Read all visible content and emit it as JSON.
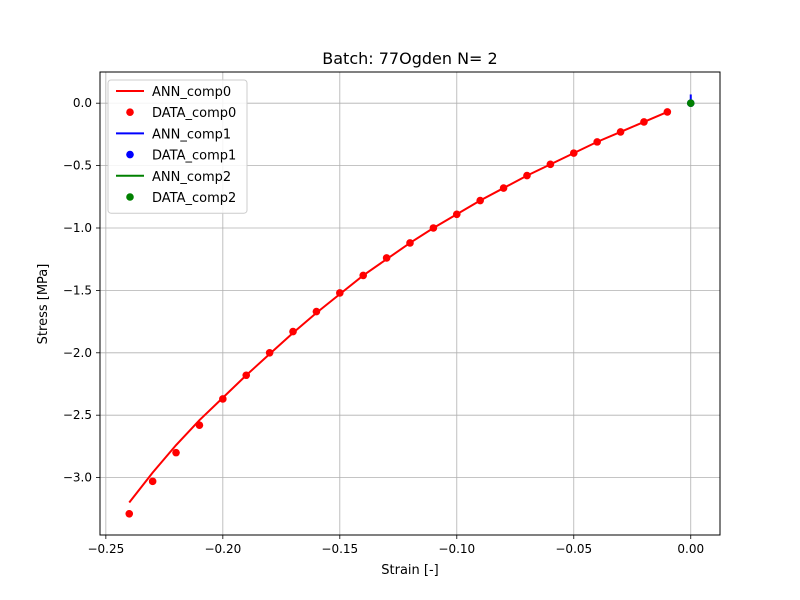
{
  "chart_data": {
    "type": "line",
    "title": "Batch: 77Ogden N= 2",
    "xlabel": "Strain [-]",
    "ylabel": "Stress [MPa]",
    "xlim": [
      -0.2525,
      0.0125
    ],
    "ylim": [
      -3.46,
      0.25
    ],
    "xticks": [
      -0.25,
      -0.2,
      -0.15,
      -0.1,
      -0.05,
      0.0
    ],
    "xtick_labels": [
      "−0.25",
      "−0.20",
      "−0.15",
      "−0.10",
      "−0.05",
      "0.00"
    ],
    "yticks": [
      0.0,
      -0.5,
      -1.0,
      -1.5,
      -2.0,
      -2.5,
      -3.0
    ],
    "ytick_labels": [
      "0.0",
      "−0.5",
      "−1.0",
      "−1.5",
      "−2.0",
      "−2.5",
      "−3.0"
    ],
    "grid": true,
    "legend_position": "upper-left",
    "series": [
      {
        "name": "ANN_comp0",
        "kind": "line",
        "color": "#ff0000",
        "x": [
          -0.24,
          -0.23,
          -0.22,
          -0.21,
          -0.2,
          -0.19,
          -0.18,
          -0.17,
          -0.16,
          -0.15,
          -0.14,
          -0.13,
          -0.12,
          -0.11,
          -0.1,
          -0.09,
          -0.08,
          -0.07,
          -0.06,
          -0.05,
          -0.04,
          -0.03,
          -0.02,
          -0.01
        ],
        "y": [
          -3.2,
          -2.96,
          -2.74,
          -2.54,
          -2.36,
          -2.18,
          -2.01,
          -1.84,
          -1.68,
          -1.53,
          -1.38,
          -1.25,
          -1.12,
          -1.0,
          -0.89,
          -0.78,
          -0.68,
          -0.58,
          -0.49,
          -0.4,
          -0.31,
          -0.23,
          -0.15,
          -0.07
        ]
      },
      {
        "name": "DATA_comp0",
        "kind": "scatter",
        "color": "#ff0000",
        "x": [
          -0.24,
          -0.23,
          -0.22,
          -0.21,
          -0.2,
          -0.19,
          -0.18,
          -0.17,
          -0.16,
          -0.15,
          -0.14,
          -0.13,
          -0.12,
          -0.11,
          -0.1,
          -0.09,
          -0.08,
          -0.07,
          -0.06,
          -0.05,
          -0.04,
          -0.03,
          -0.02,
          -0.01
        ],
        "y": [
          -3.29,
          -3.03,
          -2.8,
          -2.58,
          -2.37,
          -2.18,
          -2.0,
          -1.83,
          -1.67,
          -1.52,
          -1.38,
          -1.24,
          -1.12,
          -1.0,
          -0.89,
          -0.78,
          -0.68,
          -0.58,
          -0.49,
          -0.4,
          -0.31,
          -0.23,
          -0.15,
          -0.07
        ]
      },
      {
        "name": "ANN_comp1",
        "kind": "line",
        "color": "#0000ff",
        "x": [
          0.0,
          0.0
        ],
        "y": [
          0.07,
          -0.02
        ]
      },
      {
        "name": "DATA_comp1",
        "kind": "scatter",
        "color": "#0000ff",
        "x": [
          0.0
        ],
        "y": [
          0.0
        ]
      },
      {
        "name": "ANN_comp2",
        "kind": "line",
        "color": "#008000",
        "x": [
          0.0,
          0.0
        ],
        "y": [
          0.0,
          0.0
        ]
      },
      {
        "name": "DATA_comp2",
        "kind": "scatter",
        "color": "#008000",
        "x": [
          0.0
        ],
        "y": [
          0.0
        ]
      }
    ]
  }
}
